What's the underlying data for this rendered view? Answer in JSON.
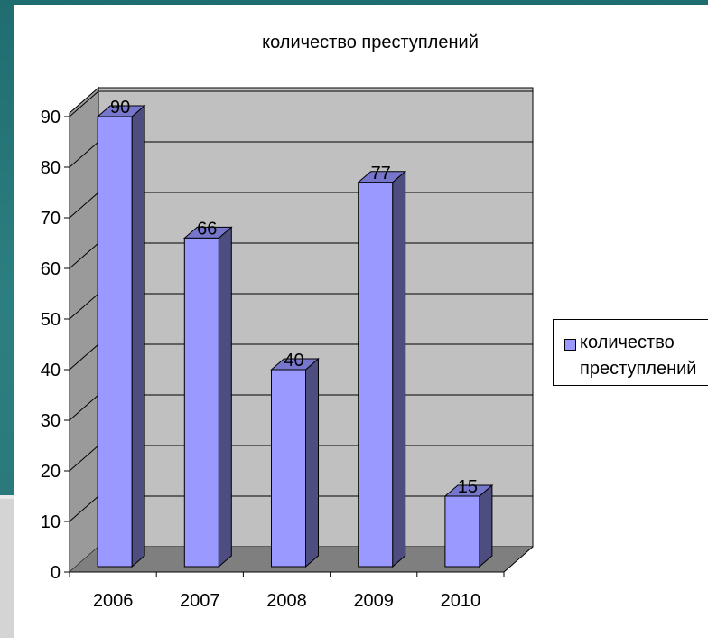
{
  "chart_data": {
    "type": "bar",
    "title": "количество преступлений",
    "categories": [
      "2006",
      "2007",
      "2008",
      "2009",
      "2010"
    ],
    "series": [
      {
        "name": "количество преступлений",
        "values": [
          90,
          66,
          40,
          77,
          15
        ]
      }
    ],
    "yticks": [
      "0",
      "10",
      "20",
      "30",
      "40",
      "50",
      "60",
      "70",
      "80",
      "90"
    ],
    "ylim": [
      0,
      90
    ],
    "grid": true,
    "three_d": true,
    "data_labels": true,
    "legend_position": "right",
    "colors": {
      "bar_front": "#9999ff",
      "bar_side": "#4d4d80",
      "bar_top": "#7676cc",
      "back_wall": "#c0c0c0",
      "side_wall": "#9a9a9a",
      "floor": "#7f7f7f"
    }
  },
  "legend": {
    "line1": "количество",
    "line2": "преступлений"
  }
}
